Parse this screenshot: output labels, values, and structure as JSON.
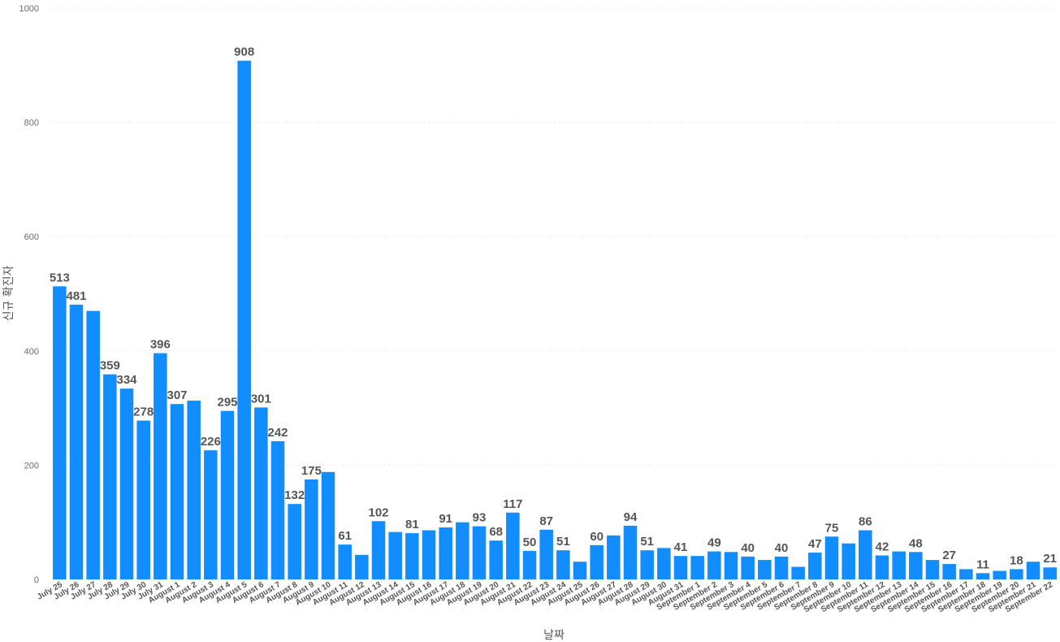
{
  "chart_data": {
    "type": "bar",
    "xlabel": "날짜",
    "ylabel": "신규 확진자",
    "ylim": [
      0,
      1000
    ],
    "yticks": [
      0,
      200,
      400,
      600,
      800,
      1000
    ],
    "grid": true,
    "bar_color": "#118DFF",
    "categories": [
      "July 25",
      "July 26",
      "July 27",
      "July 28",
      "July 29",
      "July 30",
      "July 31",
      "August 1",
      "August 2",
      "August 3",
      "August 4",
      "August 5",
      "August 6",
      "August 7",
      "August 8",
      "August 9",
      "August 10",
      "August 11",
      "August 12",
      "August 13",
      "August 14",
      "August 15",
      "August 16",
      "August 17",
      "August 18",
      "August 19",
      "August 20",
      "August 21",
      "August 22",
      "August 23",
      "August 24",
      "August 25",
      "August 26",
      "August 27",
      "August 28",
      "August 29",
      "August 30",
      "August 31",
      "September 1",
      "September 2",
      "September 3",
      "September 4",
      "September 5",
      "September 6",
      "September 7",
      "September 8",
      "September 9",
      "September 10",
      "September 11",
      "September 12",
      "September 13",
      "September 14",
      "September 15",
      "September 16",
      "September 17",
      "September 18",
      "September 19",
      "September 20",
      "September 21",
      "September 22"
    ],
    "values": [
      513,
      481,
      470,
      359,
      334,
      278,
      396,
      307,
      313,
      226,
      295,
      908,
      301,
      242,
      132,
      175,
      188,
      61,
      43,
      102,
      83,
      81,
      86,
      91,
      100,
      93,
      68,
      117,
      50,
      87,
      51,
      31,
      60,
      77,
      94,
      51,
      55,
      41,
      41,
      49,
      48,
      40,
      34,
      40,
      22,
      47,
      75,
      63,
      86,
      42,
      49,
      48,
      34,
      27,
      18,
      11,
      15,
      18,
      31,
      21
    ],
    "data_labels": [
      {
        "category": "July 25",
        "text": "513"
      },
      {
        "category": "July 26",
        "text": "481"
      },
      {
        "category": "July 28",
        "text": "359"
      },
      {
        "category": "July 29",
        "text": "334"
      },
      {
        "category": "July 30",
        "text": "278"
      },
      {
        "category": "July 31",
        "text": "396"
      },
      {
        "category": "August 1",
        "text": "307"
      },
      {
        "category": "August 3",
        "text": "226"
      },
      {
        "category": "August 4",
        "text": "295"
      },
      {
        "category": "August 5",
        "text": "908"
      },
      {
        "category": "August 6",
        "text": "301"
      },
      {
        "category": "August 7",
        "text": "242"
      },
      {
        "category": "August 8",
        "text": "132"
      },
      {
        "category": "August 9",
        "text": "175"
      },
      {
        "category": "August 11",
        "text": "61"
      },
      {
        "category": "August 13",
        "text": "102"
      },
      {
        "category": "August 15",
        "text": "81"
      },
      {
        "category": "August 17",
        "text": "91"
      },
      {
        "category": "August 19",
        "text": "93"
      },
      {
        "category": "August 20",
        "text": "68"
      },
      {
        "category": "August 21",
        "text": "117"
      },
      {
        "category": "August 22",
        "text": "50"
      },
      {
        "category": "August 23",
        "text": "87"
      },
      {
        "category": "August 24",
        "text": "51"
      },
      {
        "category": "August 26",
        "text": "60"
      },
      {
        "category": "August 28",
        "text": "94"
      },
      {
        "category": "August 29",
        "text": "51"
      },
      {
        "category": "August 31",
        "text": "41"
      },
      {
        "category": "September 2",
        "text": "49"
      },
      {
        "category": "September 4",
        "text": "40"
      },
      {
        "category": "September 6",
        "text": "40"
      },
      {
        "category": "September 8",
        "text": "47"
      },
      {
        "category": "September 9",
        "text": "75"
      },
      {
        "category": "September 11",
        "text": "86"
      },
      {
        "category": "September 12",
        "text": "42"
      },
      {
        "category": "September 14",
        "text": "48"
      },
      {
        "category": "September 16",
        "text": "27"
      },
      {
        "category": "September 18",
        "text": "11"
      },
      {
        "category": "September 20",
        "text": "18"
      },
      {
        "category": "September 22",
        "text": "21"
      }
    ]
  }
}
